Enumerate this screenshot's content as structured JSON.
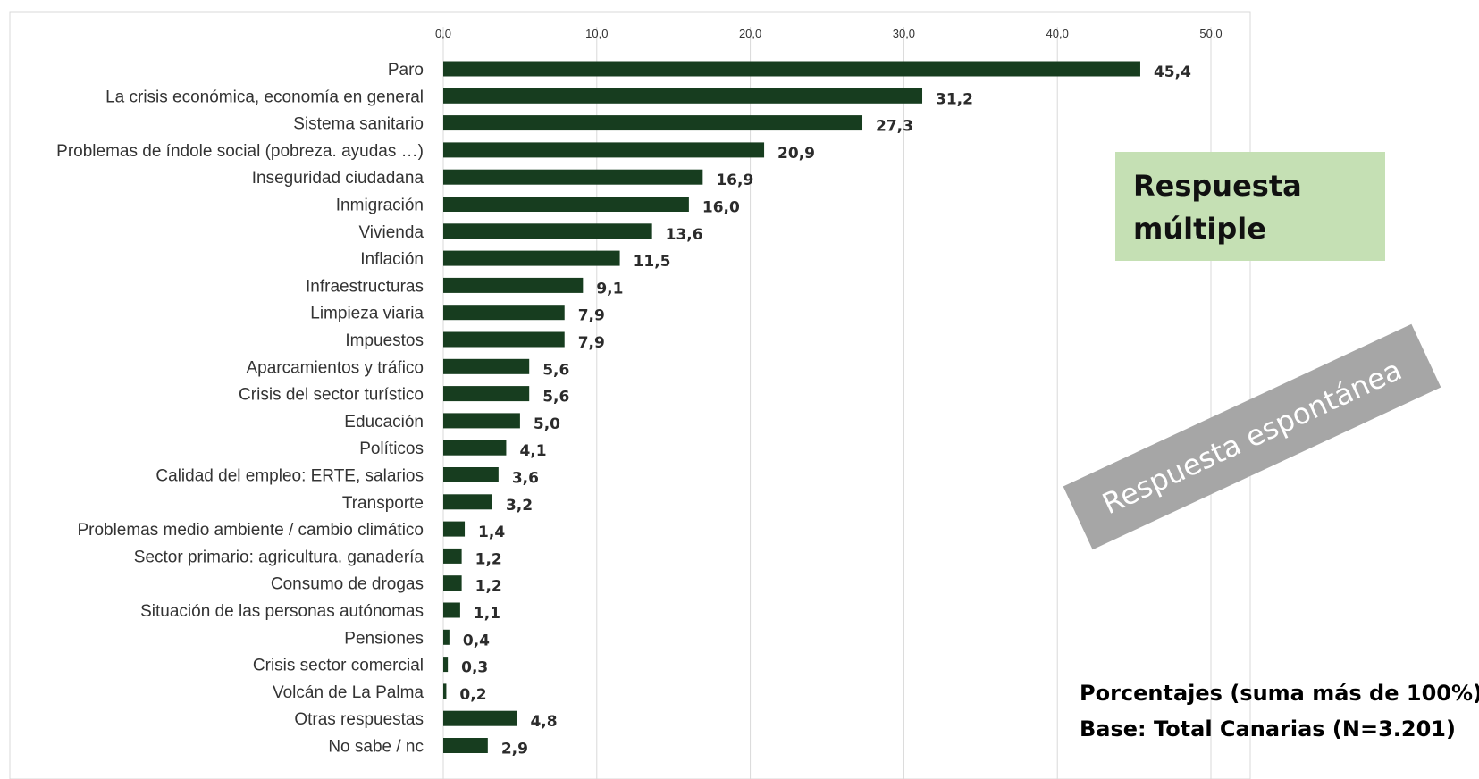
{
  "chart_data": {
    "type": "bar",
    "orientation": "horizontal",
    "categories": [
      "Paro",
      "La crisis económica, economía en general",
      "Sistema sanitario",
      "Problemas de índole social (pobreza. ayudas …)",
      "Inseguridad ciudadana",
      "Inmigración",
      "Vivienda",
      "Inflación",
      "Infraestructuras",
      "Limpieza viaria",
      "Impuestos",
      "Aparcamientos y tráfico",
      "Crisis del sector turístico",
      "Educación",
      "Políticos",
      "Calidad del empleo: ERTE, salarios",
      "Transporte",
      "Problemas medio ambiente / cambio climático",
      "Sector primario: agricultura. ganadería",
      "Consumo de drogas",
      "Situación de las personas autónomas",
      "Pensiones",
      "Crisis sector comercial",
      "Volcán de La Palma",
      "Otras respuestas",
      "No sabe / nc"
    ],
    "values": [
      45.4,
      31.2,
      27.3,
      20.9,
      16.9,
      16.0,
      13.6,
      11.5,
      9.1,
      7.9,
      7.9,
      5.6,
      5.6,
      5.0,
      4.1,
      3.6,
      3.2,
      1.4,
      1.2,
      1.2,
      1.1,
      0.4,
      0.3,
      0.2,
      4.8,
      2.9
    ],
    "value_labels": [
      "45,4",
      "31,2",
      "27,3",
      "20,9",
      "16,9",
      "16,0",
      "13,6",
      "11,5",
      "9,1",
      "7,9",
      "7,9",
      "5,6",
      "5,6",
      "5,0",
      "4,1",
      "3,6",
      "3,2",
      "1,4",
      "1,2",
      "1,2",
      "1,1",
      "0,4",
      "0,3",
      "0,2",
      "4,8",
      "2,9"
    ],
    "xlim": [
      0,
      50
    ],
    "xticks": [
      0,
      10,
      20,
      30,
      40,
      50
    ],
    "xtick_labels": [
      "0,0",
      "10,0",
      "20,0",
      "30,0",
      "40,0",
      "50,0"
    ],
    "xaxis_position": "top",
    "grid": "vertical",
    "bar_color": "#173d1f",
    "grid_color": "#d9d9d9"
  },
  "annotations": {
    "box_line1": "Respuesta",
    "box_line2": "múltiple",
    "box_color": "#c5e0b4",
    "banner_text": "Respuesta espontánea",
    "banner_color": "#a6a6a6",
    "note_line1": "Porcentajes  (suma más de 100%)",
    "note_line2": "Base: Total Canarias (N=3.201)"
  }
}
